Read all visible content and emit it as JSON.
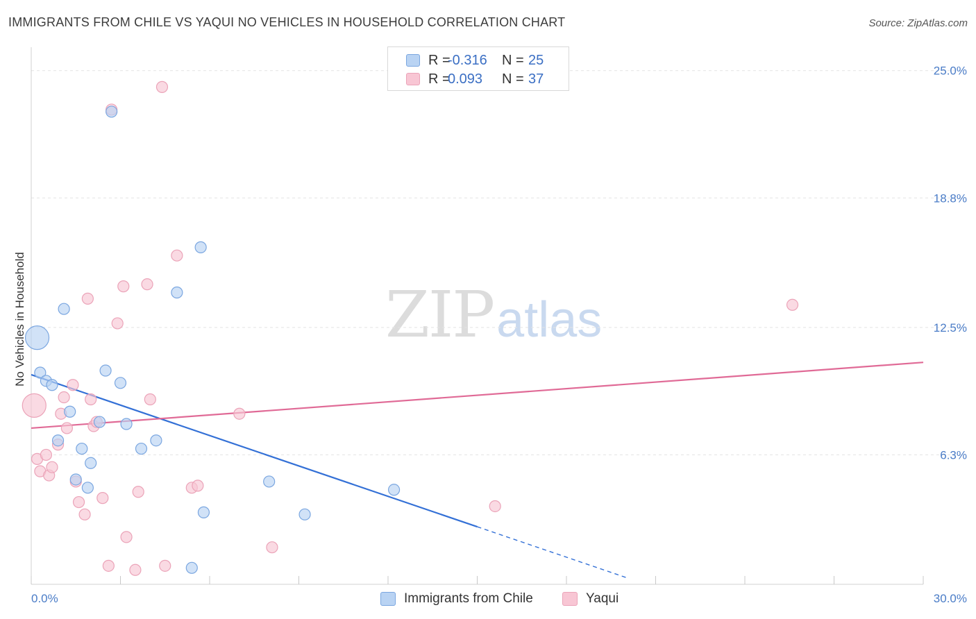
{
  "title": "IMMIGRANTS FROM CHILE VS YAQUI NO VEHICLES IN HOUSEHOLD CORRELATION CHART",
  "source": "Source: ZipAtlas.com",
  "watermark": {
    "zip": "ZIP",
    "atlas": "atlas"
  },
  "legend": {
    "rows": [
      {
        "r_label": "R =",
        "r_value": "-0.316",
        "n_label": "N =",
        "n_value": "25"
      },
      {
        "r_label": "R =",
        "r_value": "0.093",
        "n_label": "N =",
        "n_value": "37"
      }
    ]
  },
  "colors": {
    "blue_fill": "#b9d3f3",
    "blue_stroke": "#7aa6e0",
    "blue_line": "#3370d6",
    "pink_fill": "#f8c6d4",
    "pink_stroke": "#eba3b8",
    "pink_line": "#e06a96",
    "grid": "#e4e4e4",
    "tick_text": "#4a7cc7"
  },
  "chart_data": {
    "type": "scatter",
    "title": "IMMIGRANTS FROM CHILE VS YAQUI NO VEHICLES IN HOUSEHOLD CORRELATION CHART",
    "xlabel": "",
    "ylabel": "No Vehicles in Household",
    "xlim": [
      0,
      30
    ],
    "ylim": [
      0,
      25.8
    ],
    "x_tick_labels": [
      "0.0%",
      "30.0%"
    ],
    "y_ticks": [
      6.3,
      12.5,
      18.8,
      25.0
    ],
    "y_tick_labels": [
      "6.3%",
      "12.5%",
      "18.8%",
      "25.0%"
    ],
    "series": [
      {
        "name": "Immigrants from Chile",
        "r": -0.316,
        "n": 25,
        "trend": {
          "x0": 0.0,
          "y0": 10.2,
          "x1": 15.0,
          "y1": 2.8,
          "dash_to_x": 20.0
        },
        "points": [
          {
            "x": 0.2,
            "y": 12.0,
            "big": true
          },
          {
            "x": 0.3,
            "y": 10.3
          },
          {
            "x": 0.5,
            "y": 9.9
          },
          {
            "x": 0.7,
            "y": 9.7
          },
          {
            "x": 1.1,
            "y": 13.4
          },
          {
            "x": 1.3,
            "y": 8.4
          },
          {
            "x": 0.9,
            "y": 7.0
          },
          {
            "x": 1.7,
            "y": 6.6
          },
          {
            "x": 2.0,
            "y": 5.9
          },
          {
            "x": 1.5,
            "y": 5.1
          },
          {
            "x": 1.9,
            "y": 4.7
          },
          {
            "x": 2.5,
            "y": 10.4
          },
          {
            "x": 2.3,
            "y": 7.9
          },
          {
            "x": 3.0,
            "y": 9.8
          },
          {
            "x": 3.2,
            "y": 7.8
          },
          {
            "x": 3.7,
            "y": 6.6
          },
          {
            "x": 4.2,
            "y": 7.0
          },
          {
            "x": 2.7,
            "y": 23.0
          },
          {
            "x": 4.9,
            "y": 14.2
          },
          {
            "x": 5.7,
            "y": 16.4
          },
          {
            "x": 5.8,
            "y": 3.5
          },
          {
            "x": 5.4,
            "y": 0.8
          },
          {
            "x": 8.0,
            "y": 5.0
          },
          {
            "x": 9.2,
            "y": 3.4
          },
          {
            "x": 12.2,
            "y": 4.6
          }
        ]
      },
      {
        "name": "Yaqui",
        "r": 0.093,
        "n": 37,
        "trend": {
          "x0": 0.0,
          "y0": 7.6,
          "x1": 30.0,
          "y1": 10.8
        },
        "points": [
          {
            "x": 0.1,
            "y": 8.7,
            "big": true
          },
          {
            "x": 0.2,
            "y": 6.1
          },
          {
            "x": 0.3,
            "y": 5.5
          },
          {
            "x": 0.5,
            "y": 6.3
          },
          {
            "x": 0.6,
            "y": 5.3
          },
          {
            "x": 0.7,
            "y": 5.7
          },
          {
            "x": 0.9,
            "y": 6.8
          },
          {
            "x": 1.0,
            "y": 8.3
          },
          {
            "x": 1.1,
            "y": 9.1
          },
          {
            "x": 1.2,
            "y": 7.6
          },
          {
            "x": 1.4,
            "y": 9.7
          },
          {
            "x": 1.5,
            "y": 5.0
          },
          {
            "x": 1.6,
            "y": 4.0
          },
          {
            "x": 1.8,
            "y": 3.4
          },
          {
            "x": 1.9,
            "y": 13.9
          },
          {
            "x": 2.0,
            "y": 9.0
          },
          {
            "x": 2.1,
            "y": 7.7
          },
          {
            "x": 2.2,
            "y": 7.9
          },
          {
            "x": 2.4,
            "y": 4.2
          },
          {
            "x": 2.6,
            "y": 0.9
          },
          {
            "x": 2.7,
            "y": 23.1
          },
          {
            "x": 2.9,
            "y": 12.7
          },
          {
            "x": 3.1,
            "y": 14.5
          },
          {
            "x": 3.2,
            "y": 2.3
          },
          {
            "x": 3.5,
            "y": 0.7
          },
          {
            "x": 3.6,
            "y": 4.5
          },
          {
            "x": 3.9,
            "y": 14.6
          },
          {
            "x": 4.0,
            "y": 9.0
          },
          {
            "x": 4.4,
            "y": 24.2
          },
          {
            "x": 4.5,
            "y": 0.9
          },
          {
            "x": 4.9,
            "y": 16.0
          },
          {
            "x": 5.4,
            "y": 4.7
          },
          {
            "x": 5.6,
            "y": 4.8
          },
          {
            "x": 7.0,
            "y": 8.3
          },
          {
            "x": 8.1,
            "y": 1.8
          },
          {
            "x": 15.6,
            "y": 3.8
          },
          {
            "x": 25.6,
            "y": 13.6
          }
        ]
      }
    ]
  }
}
